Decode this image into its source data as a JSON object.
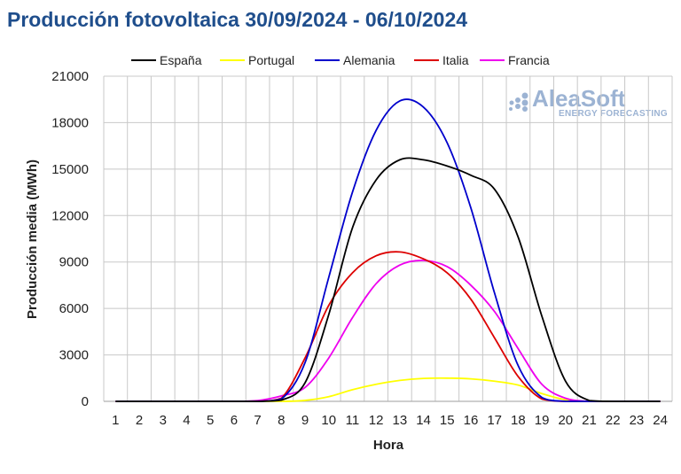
{
  "chart_data": {
    "type": "line",
    "title": "Producción fotovoltaica 30/09/2024 - 06/10/2024",
    "xlabel": "Hora",
    "ylabel": "Producción media (MWh)",
    "x": [
      1,
      2,
      3,
      4,
      5,
      6,
      7,
      8,
      9,
      10,
      11,
      12,
      13,
      14,
      15,
      16,
      17,
      18,
      19,
      20,
      21,
      22,
      23,
      24
    ],
    "ylim": [
      0,
      21000
    ],
    "yticks": [
      0,
      3000,
      6000,
      9000,
      12000,
      15000,
      18000,
      21000
    ],
    "grid": true,
    "legend_position": "top",
    "series": [
      {
        "name": "España",
        "color": "#000000",
        "values": [
          0,
          0,
          0,
          0,
          0,
          0,
          0,
          80,
          1200,
          5600,
          11200,
          14300,
          15600,
          15600,
          15200,
          14600,
          13700,
          10600,
          5500,
          1300,
          50,
          0,
          0,
          0
        ]
      },
      {
        "name": "Portugal",
        "color": "#ffff00",
        "values": [
          0,
          0,
          0,
          0,
          0,
          0,
          0,
          0,
          60,
          300,
          750,
          1100,
          1350,
          1480,
          1500,
          1450,
          1300,
          1050,
          500,
          100,
          0,
          0,
          0,
          0
        ]
      },
      {
        "name": "Alemania",
        "color": "#0000cc",
        "values": [
          0,
          0,
          0,
          0,
          0,
          0,
          0,
          150,
          2500,
          8000,
          13500,
          17500,
          19400,
          19000,
          16700,
          12500,
          7000,
          2300,
          250,
          0,
          0,
          0,
          0,
          0
        ]
      },
      {
        "name": "Italia",
        "color": "#dd0000",
        "values": [
          0,
          0,
          0,
          0,
          0,
          0,
          0,
          200,
          2800,
          6200,
          8300,
          9400,
          9650,
          9200,
          8300,
          6600,
          4100,
          1600,
          150,
          0,
          0,
          0,
          0,
          0
        ]
      },
      {
        "name": "Francia",
        "color": "#ee00ee",
        "values": [
          0,
          0,
          0,
          0,
          0,
          0,
          50,
          350,
          900,
          2800,
          5400,
          7600,
          8800,
          9100,
          8700,
          7500,
          5800,
          3400,
          1100,
          200,
          0,
          0,
          0,
          0
        ]
      }
    ]
  },
  "logo": {
    "main": "AleaSoft",
    "sub": "ENERGY FORECASTING"
  }
}
